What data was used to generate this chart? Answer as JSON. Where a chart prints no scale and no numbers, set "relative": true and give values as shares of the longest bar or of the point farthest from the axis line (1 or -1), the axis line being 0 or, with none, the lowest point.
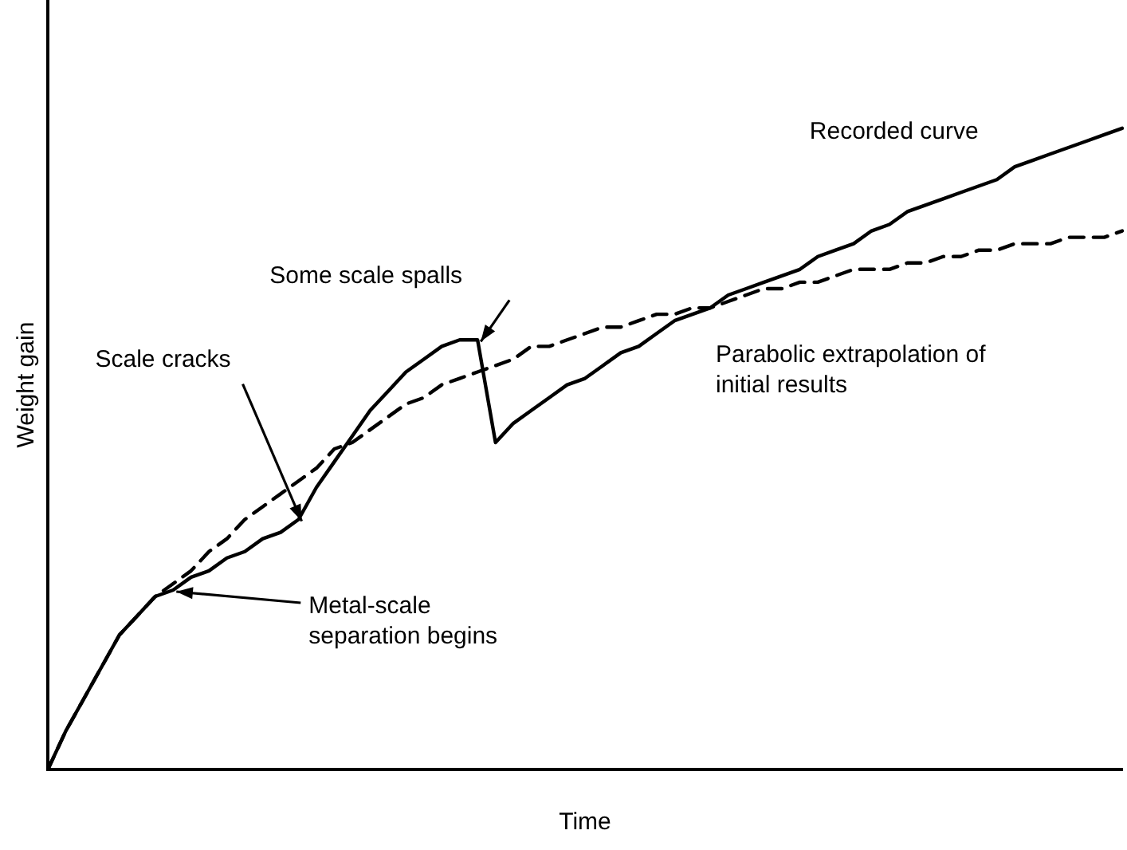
{
  "chart_data": {
    "type": "line",
    "xlabel": "Time",
    "ylabel": "Weight gain",
    "relative": true,
    "grid": false,
    "legend": false,
    "marker": "none",
    "categories": [
      null,
      null,
      null,
      null,
      null,
      null,
      null,
      null,
      null,
      null,
      null,
      null,
      null,
      null,
      null,
      null,
      null,
      null,
      null,
      null,
      null,
      null,
      null,
      null,
      null,
      null,
      null,
      null,
      null,
      null,
      null,
      null,
      null,
      null,
      null,
      null,
      null,
      null,
      null,
      null,
      null,
      null,
      null,
      null,
      null,
      null,
      null,
      null,
      null,
      null,
      null,
      null,
      null,
      null,
      null,
      null,
      null,
      null,
      null,
      null,
      null
    ],
    "series": [
      {
        "name": "Recorded curve",
        "color": "#000000",
        "line_style": "solid",
        "values": [
          0,
          0.06,
          0.11,
          0.16,
          0.21,
          0.24,
          0.27,
          0.28,
          0.3,
          0.31,
          0.33,
          0.34,
          0.36,
          0.37,
          0.39,
          0.44,
          0.48,
          0.52,
          0.56,
          0.59,
          0.62,
          0.64,
          0.66,
          0.67,
          0.67,
          0.51,
          0.54,
          0.56,
          0.58,
          0.6,
          0.61,
          0.63,
          0.65,
          0.66,
          0.68,
          0.7,
          0.71,
          0.72,
          0.74,
          0.75,
          0.76,
          0.77,
          0.78,
          0.8,
          0.81,
          0.82,
          0.84,
          0.85,
          0.87,
          0.88,
          0.89,
          0.9,
          0.91,
          0.92,
          0.94,
          0.95,
          0.96,
          0.97,
          0.98,
          0.99,
          1
        ]
      },
      {
        "name": "Parabolic extrapolation of initial results",
        "color": "#000000",
        "line_style": "dashed",
        "values": [
          0,
          0.06,
          0.11,
          0.16,
          0.21,
          0.24,
          0.27,
          0.29,
          0.31,
          0.34,
          0.36,
          0.39,
          0.41,
          0.43,
          0.45,
          0.47,
          0.5,
          0.51,
          0.53,
          0.55,
          0.57,
          0.58,
          0.6,
          0.61,
          0.62,
          0.63,
          0.64,
          0.66,
          0.66,
          0.67,
          0.68,
          0.69,
          0.69,
          0.7,
          0.71,
          0.71,
          0.72,
          0.72,
          0.73,
          0.74,
          0.75,
          0.75,
          0.76,
          0.76,
          0.77,
          0.78,
          0.78,
          0.78,
          0.79,
          0.79,
          0.8,
          0.8,
          0.81,
          0.81,
          0.82,
          0.82,
          0.82,
          0.83,
          0.83,
          0.83,
          0.84
        ]
      }
    ],
    "annotations": [
      "Some scale spalls",
      "Scale cracks",
      "Metal-scale separation begins"
    ]
  }
}
